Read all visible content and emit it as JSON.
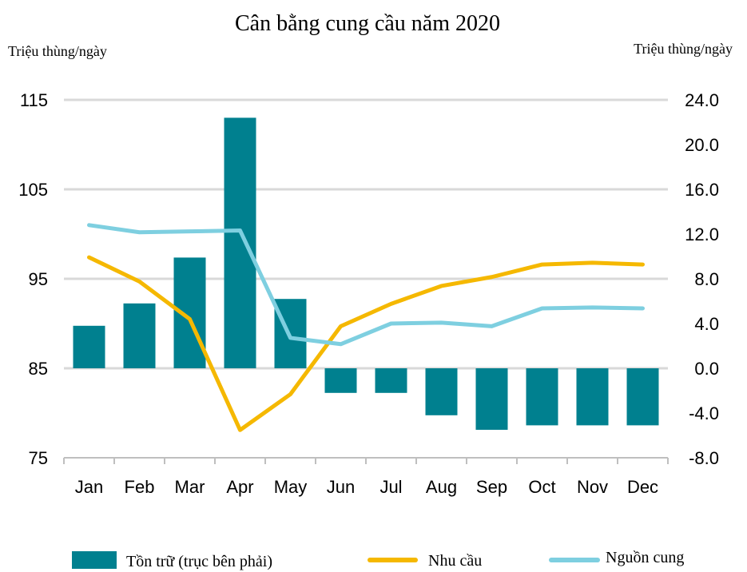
{
  "chart_data": {
    "type": "bar+line",
    "title": "Cân bằng cung cầu năm 2020",
    "ylabel_left": "Triệu thùng/ngày",
    "ylabel_right": "Triệu thùng/ngày",
    "categories": [
      "Jan",
      "Feb",
      "Mar",
      "Apr",
      "May",
      "Jun",
      "Jul",
      "Aug",
      "Sep",
      "Oct",
      "Nov",
      "Dec"
    ],
    "y_left": {
      "min": 75,
      "max": 115,
      "ticks": [
        "75",
        "85",
        "95",
        "105",
        "115"
      ]
    },
    "y_right": {
      "min": -8,
      "max": 24,
      "ticks": [
        "-8.0",
        "-4.0",
        "0.0",
        "4.0",
        "8.0",
        "12.0",
        "16.0",
        "20.0",
        "24.0"
      ]
    },
    "grid": true,
    "legend_position": "bottom",
    "series": [
      {
        "name": "Tồn trữ (trục bên phải)",
        "type": "bar",
        "axis": "right",
        "color": "#00808f",
        "values": [
          3.8,
          5.8,
          9.9,
          22.4,
          6.2,
          -2.2,
          -2.2,
          -4.2,
          -5.5,
          -5.1,
          -5.1,
          -5.1
        ]
      },
      {
        "name": "Nhu cầu",
        "type": "line",
        "axis": "left",
        "color": "#f5b800",
        "values": [
          97.4,
          94.7,
          90.5,
          78.1,
          82.1,
          89.7,
          92.2,
          94.2,
          95.2,
          96.6,
          96.8,
          96.6
        ]
      },
      {
        "name": "Nguồn cung",
        "type": "line",
        "axis": "left",
        "color": "#7ecfe0",
        "values": [
          101.0,
          100.2,
          100.3,
          100.4,
          88.4,
          87.7,
          90.0,
          90.1,
          89.7,
          91.7,
          91.8,
          91.7
        ]
      }
    ]
  }
}
